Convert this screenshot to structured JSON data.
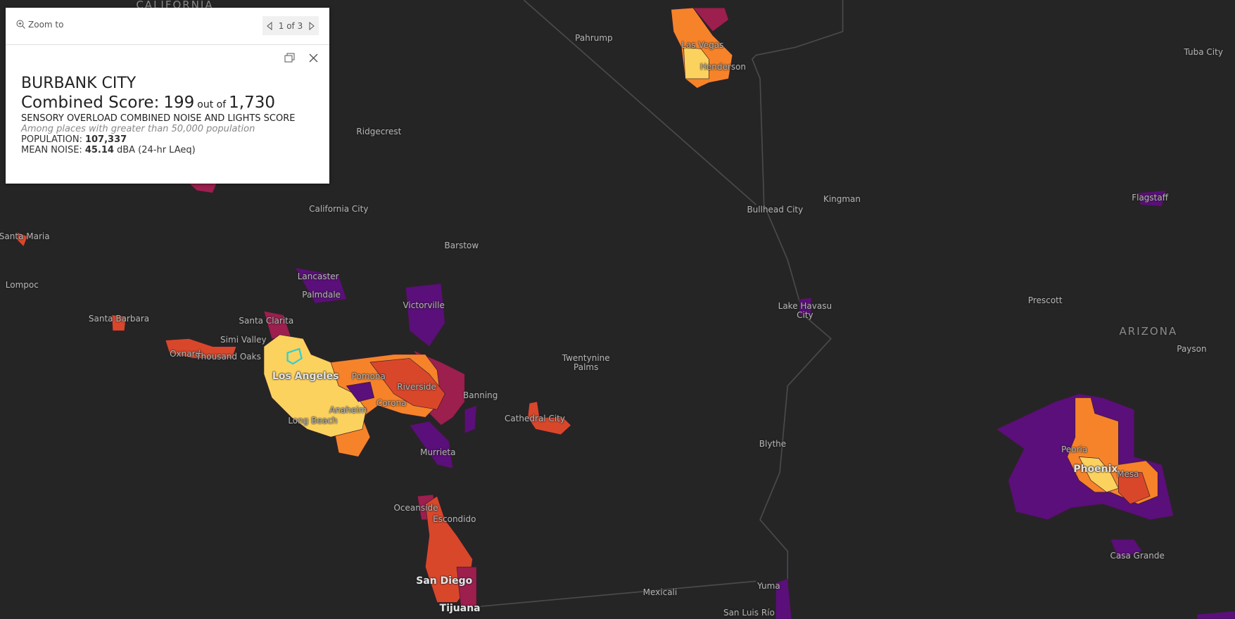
{
  "popup": {
    "zoom_to": "Zoom to",
    "pager": "1 of 3",
    "title": "BURBANK CITY",
    "score_label": "Combined Score:",
    "score": "199",
    "out_of": "out of",
    "total": "1,730",
    "subtitle": "SENSORY OVERLOAD COMBINED NOISE AND LIGHTS SCORE",
    "note": "Among places with greater than 50,000 population",
    "population_label": "POPULATION:",
    "population": "107,337",
    "noise_label": "MEAN NOISE:",
    "noise": "45.14",
    "noise_unit": "dBA (24-hr LAeq)"
  },
  "map_labels": [
    "CALIFORNIA",
    "Pahrump",
    "Las Vegas",
    "Henderson",
    "Tuba City",
    "Ridgecrest",
    "California City",
    "Bullhead City",
    "Kingman",
    "Flagstaff",
    "Santa Maria",
    "Barstow",
    "Lompoc",
    "Lancaster",
    "Palmdale",
    "Victorville",
    "Lake Havasu City",
    "Prescott",
    "ARIZONA",
    "Payson",
    "Santa Barbara",
    "Santa Clarita",
    "Simi Valley",
    "Oxnard",
    "Thousand Oaks",
    "Twentynine Palms",
    "Los Angeles",
    "Pomona",
    "Riverside",
    "Banning",
    "Corona",
    "Anaheim",
    "Cathedral City",
    "Long Beach",
    "Murrieta",
    "Blythe",
    "Peoria",
    "Phoenix",
    "Mesa",
    "Oceanside",
    "Escondido",
    "Casa Grande",
    "San Diego",
    "Mexicali",
    "Yuma",
    "Tijuana",
    "San Luis Río"
  ]
}
